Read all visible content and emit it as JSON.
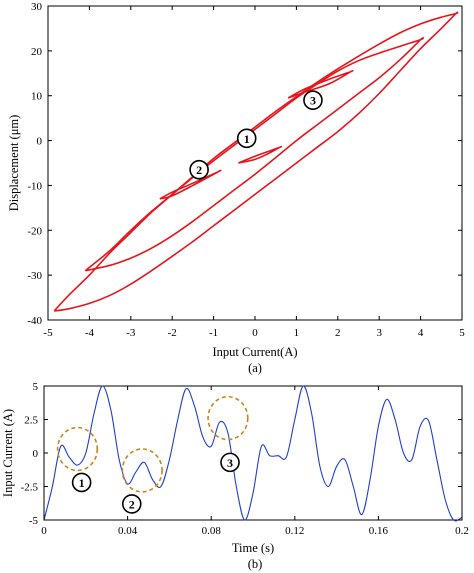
{
  "chart_data": [
    {
      "type": "line",
      "caption": "(a)",
      "xlabel": "Input Current(A)",
      "ylabel": "Displacement (μm)",
      "xlim": [
        -5,
        5
      ],
      "ylim": [
        -40,
        30
      ],
      "xticks": [
        "-5",
        "-4",
        "-3",
        "-2",
        "-1",
        "0",
        "1",
        "2",
        "3",
        "4",
        "5"
      ],
      "yticks": [
        "-40",
        "-30",
        "-20",
        "-10",
        "0",
        "10",
        "20",
        "30"
      ],
      "grid": false,
      "color": "#e8141c",
      "series": [
        {
          "loop": "major",
          "upper": [
            [
              -4.85,
              -38
            ],
            [
              -4.5,
              -34.5
            ],
            [
              -4,
              -30
            ],
            [
              -3.5,
              -25
            ],
            [
              -3,
              -20.5
            ],
            [
              -2.5,
              -16
            ],
            [
              -2,
              -12
            ],
            [
              -1.5,
              -8
            ],
            [
              -1,
              -4
            ],
            [
              -0.5,
              -0.5
            ],
            [
              0,
              3
            ],
            [
              0.5,
              6.5
            ],
            [
              1,
              9.8
            ],
            [
              1.5,
              13
            ],
            [
              2,
              16
            ],
            [
              2.5,
              18.8
            ],
            [
              3,
              21.5
            ],
            [
              3.5,
              24
            ],
            [
              4,
              26
            ],
            [
              4.5,
              27.5
            ],
            [
              4.85,
              28.3
            ]
          ],
          "lower": [
            [
              4.85,
              28.3
            ],
            [
              4.5,
              25
            ],
            [
              4,
              20.5
            ],
            [
              3.5,
              15.5
            ],
            [
              3,
              10.5
            ],
            [
              2.5,
              6
            ],
            [
              2,
              2
            ],
            [
              1.5,
              -1.5
            ],
            [
              1,
              -5
            ],
            [
              0.5,
              -8.5
            ],
            [
              0,
              -12
            ],
            [
              -0.5,
              -15.5
            ],
            [
              -1,
              -19
            ],
            [
              -1.5,
              -22.5
            ],
            [
              -2,
              -25.8
            ],
            [
              -2.5,
              -29
            ],
            [
              -3,
              -32
            ],
            [
              -3.5,
              -34.5
            ],
            [
              -4,
              -36.3
            ],
            [
              -4.5,
              -37.5
            ],
            [
              -4.85,
              -38
            ]
          ]
        },
        {
          "loop": "minor-outer",
          "upper": [
            [
              -4.1,
              -29
            ],
            [
              -3.5,
              -24.5
            ],
            [
              -3,
              -20
            ],
            [
              -2.5,
              -15.8
            ],
            [
              -2,
              -12
            ],
            [
              -1.5,
              -8.2
            ],
            [
              -1,
              -4.5
            ],
            [
              -0.5,
              -1
            ],
            [
              0,
              2.5
            ],
            [
              0.5,
              6
            ],
            [
              1,
              9.5
            ],
            [
              1.5,
              12.6
            ],
            [
              2,
              15.5
            ],
            [
              2.5,
              17.8
            ],
            [
              3,
              19.5
            ],
            [
              3.5,
              21
            ],
            [
              4,
              22.5
            ]
          ],
          "lower": [
            [
              4,
              22.5
            ],
            [
              3.5,
              18
            ],
            [
              3,
              14
            ],
            [
              2.5,
              10.5
            ],
            [
              2,
              7
            ],
            [
              1.5,
              3.5
            ],
            [
              1,
              0
            ],
            [
              0.5,
              -3.8
            ],
            [
              0,
              -7.5
            ],
            [
              -0.5,
              -11
            ],
            [
              -1,
              -14.5
            ],
            [
              -1.5,
              -18
            ],
            [
              -2,
              -21.2
            ],
            [
              -2.5,
              -24
            ],
            [
              -3,
              -26.2
            ],
            [
              -3.5,
              -27.8
            ],
            [
              -4.1,
              -29
            ]
          ]
        },
        {
          "loop": "minor-inner-low",
          "upper": [
            [
              -2.3,
              -13
            ],
            [
              -2,
              -11.5
            ],
            [
              -1.5,
              -9.5
            ],
            [
              -0.9,
              -7
            ]
          ],
          "lower": [
            [
              -0.9,
              -7
            ],
            [
              -1.5,
              -10
            ],
            [
              -2,
              -12.3
            ],
            [
              -2.3,
              -13
            ]
          ]
        },
        {
          "loop": "minor-inner-center",
          "upper": [
            [
              -0.4,
              -5
            ],
            [
              0,
              -3.5
            ],
            [
              0.3,
              -2.5
            ],
            [
              0.6,
              -1.5
            ]
          ],
          "lower": [
            [
              0.6,
              -1.5
            ],
            [
              0.3,
              -3
            ],
            [
              0,
              -4.2
            ],
            [
              -0.4,
              -5
            ]
          ]
        },
        {
          "loop": "minor-inner-high",
          "upper": [
            [
              0.8,
              9.5
            ],
            [
              1.2,
              11.5
            ],
            [
              1.8,
              13.7
            ],
            [
              2.3,
              15.3
            ]
          ],
          "lower": [
            [
              2.3,
              15.3
            ],
            [
              1.8,
              12.7
            ],
            [
              1.2,
              10.8
            ],
            [
              0.8,
              9.5
            ]
          ]
        }
      ],
      "markers": [
        {
          "label": "1",
          "x": -0.2,
          "y": 0.5
        },
        {
          "label": "2",
          "x": -1.35,
          "y": -6.5
        },
        {
          "label": "3",
          "x": 1.4,
          "y": 9
        }
      ]
    },
    {
      "type": "line",
      "caption": "(b)",
      "xlabel": "Time (s)",
      "ylabel": "Input Current (A)",
      "xlim": [
        0,
        0.2
      ],
      "ylim": [
        -5,
        5
      ],
      "xticks": [
        "0",
        "0.04",
        "0.08",
        "0.12",
        "0.16",
        "0.2"
      ],
      "yticks": [
        "-5",
        "-2.5",
        "0",
        "2.5",
        "5"
      ],
      "grid": false,
      "color": "#1f3fd0",
      "series": [
        {
          "name": "",
          "x": [
            0,
            0.004,
            0.008,
            0.012,
            0.016,
            0.02,
            0.024,
            0.028,
            0.032,
            0.036,
            0.04,
            0.044,
            0.048,
            0.052,
            0.056,
            0.06,
            0.064,
            0.068,
            0.072,
            0.076,
            0.08,
            0.084,
            0.088,
            0.092,
            0.096,
            0.1,
            0.104,
            0.108,
            0.112,
            0.116,
            0.12,
            0.124,
            0.128,
            0.132,
            0.136,
            0.14,
            0.144,
            0.148,
            0.152,
            0.156,
            0.16,
            0.164,
            0.168,
            0.172,
            0.176,
            0.18,
            0.184,
            0.188,
            0.192,
            0.196,
            0.2
          ],
          "y": [
            -5,
            -2.5,
            0.5,
            -0.3,
            -0.9,
            0,
            3,
            5,
            3.2,
            -0.5,
            -2.3,
            -1.4,
            -0.7,
            -2,
            -2.5,
            -0.5,
            2.5,
            4.8,
            3.5,
            1.2,
            0.5,
            2.3,
            1.5,
            -2.5,
            -5,
            -3,
            0.5,
            -0.2,
            -0.2,
            -0.3,
            2.5,
            5,
            3,
            -1,
            -2.5,
            -1,
            -0.5,
            -2.5,
            -4.6,
            -2,
            2,
            4,
            2.5,
            0,
            -0.5,
            2,
            2.4,
            -0.5,
            -3.5,
            -5,
            -4.8
          ]
        }
      ],
      "markers": [
        {
          "label": "1",
          "x": 0.018,
          "y": -2.2
        },
        {
          "label": "2",
          "x": 0.042,
          "y": -3.8
        },
        {
          "label": "3",
          "x": 0.089,
          "y": -0.7
        }
      ],
      "highlight_circles": [
        {
          "x": 0.016,
          "y": 0.3,
          "rx": 0.0095,
          "ry": 1.6
        },
        {
          "x": 0.047,
          "y": -1.3,
          "rx": 0.0095,
          "ry": 1.6
        },
        {
          "x": 0.088,
          "y": 2.6,
          "rx": 0.0095,
          "ry": 1.6
        }
      ],
      "highlight_color": "#c8861e"
    }
  ]
}
